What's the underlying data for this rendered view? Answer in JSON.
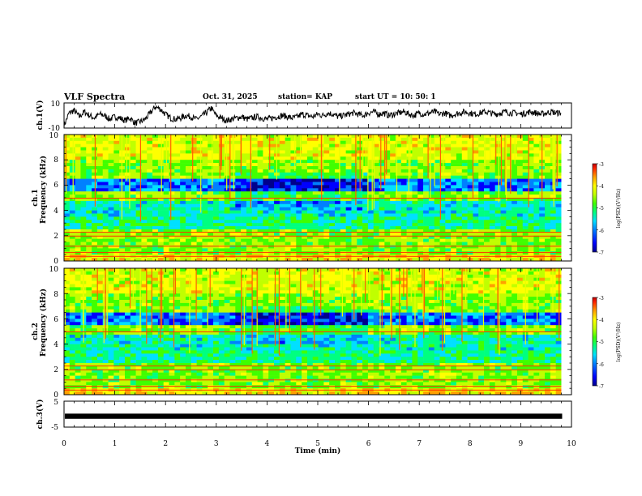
{
  "header": {
    "title": "VLF Spectra",
    "date": "Oct. 31, 2025",
    "station": "station= KAP",
    "start_ut": "start  UT  =   10: 50: 1"
  },
  "chart_data": [
    {
      "type": "line",
      "panel": "ch1-waveform",
      "ylabel": "ch.1(V)",
      "ylim": [
        -10,
        10
      ],
      "y_tick_labels": [
        "10",
        "-10"
      ],
      "xlim": [
        0,
        10
      ],
      "x": [
        0,
        0.1,
        0.2,
        0.3,
        0.4,
        0.5,
        0.6,
        0.7,
        0.8,
        0.9,
        1.0,
        1.1,
        1.2,
        1.3,
        1.4,
        1.5,
        1.6,
        1.7,
        1.8,
        1.9,
        2.0,
        2.1,
        2.2,
        2.3,
        2.4,
        2.5,
        2.6,
        2.7,
        2.8,
        2.9,
        3.0,
        3.1,
        3.2,
        3.3,
        3.4,
        3.5,
        3.6,
        3.7,
        3.8,
        3.9,
        4.0,
        4.1,
        4.2,
        4.3,
        4.4,
        4.5,
        4.6,
        4.7,
        4.8,
        4.9,
        5.0,
        5.1,
        5.2,
        5.3,
        5.4,
        5.5,
        5.6,
        5.7,
        5.8,
        5.9,
        6.0,
        6.1,
        6.2,
        6.3,
        6.4,
        6.5,
        6.6,
        6.7,
        6.8,
        6.9,
        7.0,
        7.1,
        7.2,
        7.3,
        7.4,
        7.5,
        7.6,
        7.7,
        7.8,
        7.9,
        8.0,
        8.1,
        8.2,
        8.3,
        8.4,
        8.5,
        8.6,
        8.7,
        8.8,
        8.9,
        9.0,
        9.1,
        9.2,
        9.3,
        9.4,
        9.5,
        9.6,
        9.7,
        9.8
      ],
      "values": [
        -8,
        2,
        4,
        -1,
        3,
        0,
        -2,
        1,
        0,
        -3,
        -1,
        -2,
        -4,
        -2,
        -6,
        -5,
        -3,
        2,
        7,
        5,
        1,
        -2,
        -3,
        -2,
        0,
        -1,
        -3,
        -1,
        2,
        6,
        0,
        -2,
        -4,
        -3,
        -2,
        -1,
        -3,
        -2,
        -1,
        -2,
        -3,
        -2,
        -1,
        0,
        -1,
        -2,
        -1,
        1,
        0,
        -1,
        1,
        0,
        2,
        1,
        -1,
        0,
        1,
        2,
        1,
        0,
        2,
        3,
        1,
        2,
        0,
        1,
        2,
        3,
        1,
        0,
        2,
        1,
        2,
        3,
        1,
        2,
        0,
        1,
        2,
        3,
        2,
        1,
        2,
        3,
        2,
        1,
        2,
        3,
        2,
        2,
        1,
        2,
        3,
        2,
        1,
        2,
        3,
        2,
        2
      ]
    },
    {
      "type": "heatmap",
      "panel": "ch1-spectrogram",
      "ylabel": "ch.1\nFrequency (kHz)",
      "ylim": [
        0,
        10
      ],
      "y_tick_labels": [
        "0",
        "2",
        "4",
        "6",
        "8",
        "10"
      ],
      "xlim": [
        0,
        10
      ],
      "colorbar": {
        "label": "log(PSD)(V²/Hz)",
        "range": [
          -7,
          -3
        ],
        "tick_labels": [
          "-3",
          "-4",
          "-5",
          "-6",
          "-7"
        ]
      }
    },
    {
      "type": "heatmap",
      "panel": "ch2-spectrogram",
      "ylabel": "ch.2\nFrequency (kHz)",
      "ylim": [
        0,
        10
      ],
      "y_tick_labels": [
        "0",
        "2",
        "4",
        "6",
        "8",
        "10"
      ],
      "xlim": [
        0,
        10
      ],
      "colorbar": {
        "label": "log(PSD)(V²/Hz)",
        "range": [
          -7,
          -3
        ],
        "tick_labels": [
          "-3",
          "-4",
          "-5",
          "-6",
          "-7"
        ]
      }
    },
    {
      "type": "line",
      "panel": "ch3-waveform",
      "ylabel": "ch.3(V)",
      "ylim": [
        -5,
        5
      ],
      "y_tick_labels": [
        "5",
        "-5"
      ],
      "xlim": [
        0,
        10
      ],
      "band": [
        -1.8,
        0.2
      ]
    }
  ],
  "x_axis": {
    "label": "Time  (min)",
    "tick_labels": [
      "0",
      "1",
      "2",
      "3",
      "4",
      "5",
      "6",
      "7",
      "8",
      "9",
      "10"
    ]
  },
  "labels": {
    "ch1_amp": "ch.1(V)",
    "ch1_spec_a": "ch.1",
    "ch1_spec_b": "Frequency  (kHz)",
    "ch2_spec_a": "ch.2",
    "ch2_spec_b": "Frequency  (kHz)",
    "ch3_amp": "ch.3(V)",
    "cbar": "log(PSD)(V²/Hz)"
  },
  "colors": {
    "scale": [
      "#00008c",
      "#0000ff",
      "#0080ff",
      "#00e0ff",
      "#00ff80",
      "#40ff00",
      "#c0ff00",
      "#ffff00",
      "#ffa000",
      "#ff2000",
      "#c00000"
    ]
  }
}
